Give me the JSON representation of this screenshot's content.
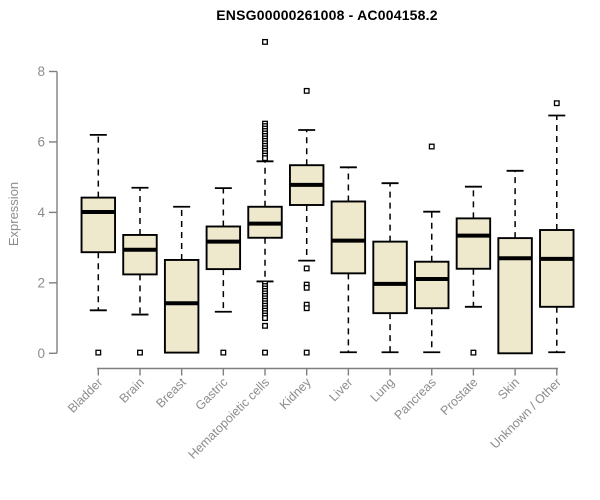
{
  "chart_data": {
    "type": "boxplot",
    "title": "ENSG00000261008 - AC004158.2",
    "xlabel": "",
    "ylabel": "Expression",
    "ylim": [
      0,
      8.9
    ],
    "yticks": [
      0,
      2,
      4,
      6,
      8
    ],
    "grid": false,
    "legend": false,
    "colors": {
      "box_fill": "#EEE8CD",
      "box_stroke": "#000000",
      "median": "#000000",
      "axis": "#7f7f7f",
      "tick_text": "#8c8c8c",
      "title_text": "#000000",
      "outlier_fill": "#ffffff"
    },
    "categories": [
      "Bladder",
      "Brain",
      "Breast",
      "Gastric",
      "Hematopoietic cells",
      "Kidney",
      "Liver",
      "Lung",
      "Pancreas",
      "Prostate",
      "Skin",
      "Unknown / Other"
    ],
    "boxes": [
      {
        "category": "Bladder",
        "low": 1.22,
        "q1": 2.87,
        "median": 4.01,
        "q3": 4.42,
        "high": 6.2,
        "outliers": [
          0.02
        ]
      },
      {
        "category": "Brain",
        "low": 1.1,
        "q1": 2.24,
        "median": 2.94,
        "q3": 3.36,
        "high": 4.7,
        "outliers": [
          0.02
        ]
      },
      {
        "category": "Breast",
        "low": null,
        "q1": 0.02,
        "median": 1.42,
        "q3": 2.65,
        "high": 4.16,
        "outliers": []
      },
      {
        "category": "Gastric",
        "low": 1.18,
        "q1": 2.39,
        "median": 3.17,
        "q3": 3.6,
        "high": 4.69,
        "outliers": [
          0.02
        ]
      },
      {
        "category": "Hematopoietic cells",
        "low": 2.04,
        "q1": 3.28,
        "median": 3.68,
        "q3": 4.16,
        "high": 5.45,
        "outliers": [
          8.84,
          6.52,
          6.45,
          6.38,
          6.31,
          6.24,
          6.17,
          6.1,
          6.03,
          5.96,
          5.89,
          5.82,
          5.75,
          5.68,
          5.61,
          5.54,
          1.98,
          1.91,
          1.84,
          1.77,
          1.7,
          1.63,
          1.56,
          1.49,
          1.42,
          1.35,
          1.28,
          1.21,
          1.14,
          1.07,
          1.0,
          0.78,
          0.02
        ]
      },
      {
        "category": "Kidney",
        "low": 2.63,
        "q1": 4.21,
        "median": 4.78,
        "q3": 5.34,
        "high": 6.34,
        "outliers": [
          7.45,
          2.41,
          1.95,
          1.86,
          1.38,
          1.28,
          0.02
        ]
      },
      {
        "category": "Liver",
        "low": 0.03,
        "q1": 2.27,
        "median": 3.2,
        "q3": 4.31,
        "high": 5.28,
        "outliers": []
      },
      {
        "category": "Lung",
        "low": 0.03,
        "q1": 1.14,
        "median": 1.97,
        "q3": 3.17,
        "high": 4.83,
        "outliers": []
      },
      {
        "category": "Pancreas",
        "low": 0.03,
        "q1": 1.28,
        "median": 2.11,
        "q3": 2.6,
        "high": 4.02,
        "outliers": [
          5.87
        ]
      },
      {
        "category": "Prostate",
        "low": 1.32,
        "q1": 2.4,
        "median": 3.34,
        "q3": 3.83,
        "high": 4.73,
        "outliers": [
          0.02
        ]
      },
      {
        "category": "Skin",
        "low": null,
        "q1": 0.0,
        "median": 2.7,
        "q3": 3.27,
        "high": 5.18,
        "outliers": []
      },
      {
        "category": "Unknown / Other",
        "low": 0.03,
        "q1": 1.32,
        "median": 2.68,
        "q3": 3.5,
        "high": 6.75,
        "outliers": [
          7.1
        ]
      }
    ]
  }
}
